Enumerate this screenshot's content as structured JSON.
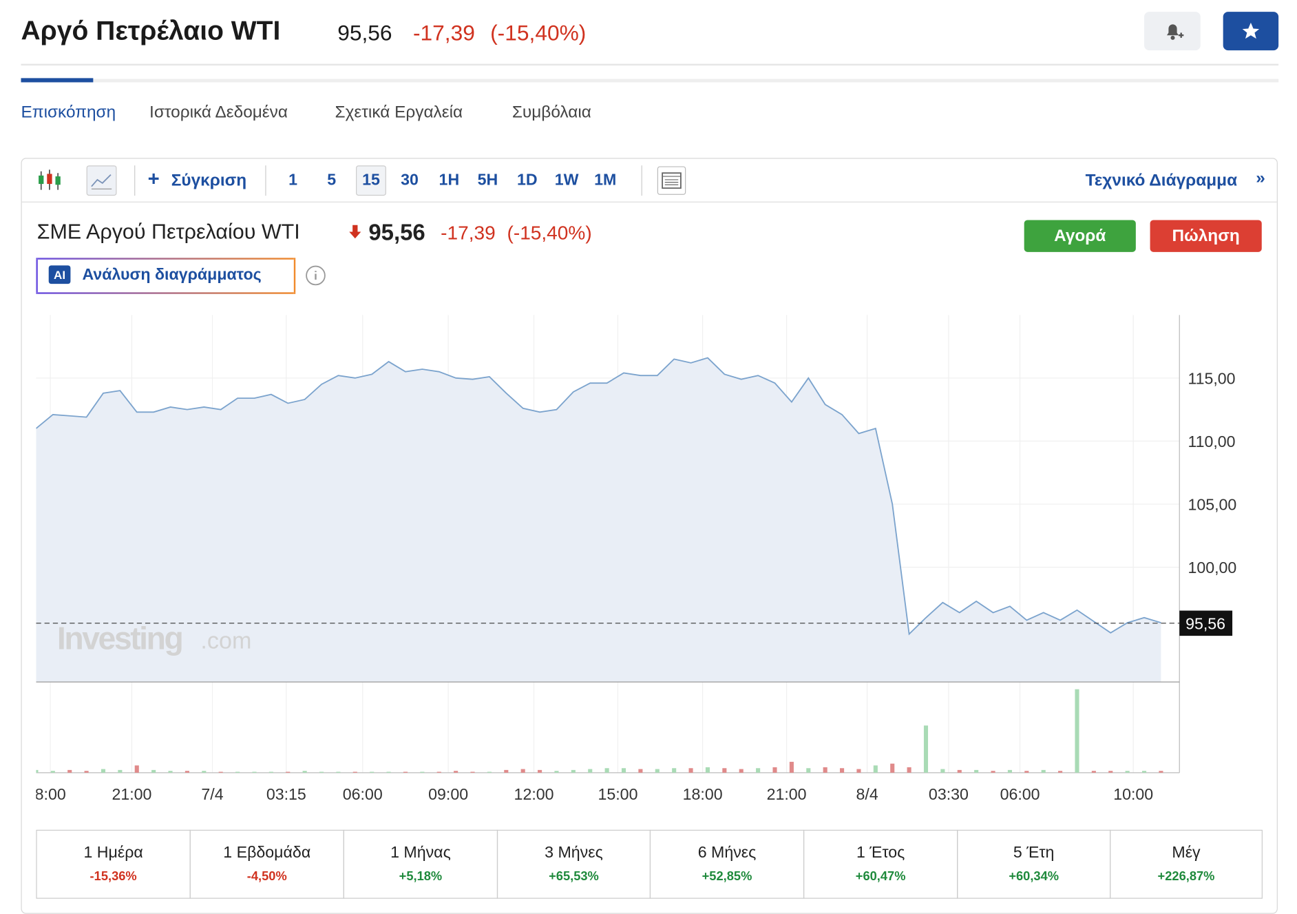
{
  "header": {
    "title": "Αργό Πετρέλαιο WTI",
    "price": "95,56",
    "change": "-17,39",
    "change_pct": "(-15,40%)"
  },
  "tabs": [
    "Επισκόπηση",
    "Ιστορικά Δεδομένα",
    "Σχετικά Εργαλεία",
    "Συμβόλαια"
  ],
  "toolbar": {
    "compare": "Σύγκριση",
    "intervals": [
      "1",
      "5",
      "15",
      "30",
      "1H",
      "5H",
      "1D",
      "1W",
      "1M"
    ],
    "technical": "Τεχνικό Διάγραμμα"
  },
  "instrument": {
    "name": "ΣΜΕ Αργού Πετρελαίου WTI",
    "price": "95,56",
    "change": "-17,39",
    "change_pct": "(-15,40%)",
    "buy": "Αγορά",
    "sell": "Πώληση",
    "ai_badge": "AI",
    "ai_button": "Ανάλυση διαγράμματος"
  },
  "chart_data": {
    "type": "line",
    "color": "#7ba3cd",
    "fill": "#e9eef6",
    "grid": true,
    "values": [
      111.0,
      112.1,
      112.0,
      111.9,
      113.8,
      114.0,
      112.3,
      112.3,
      112.7,
      112.5,
      112.7,
      112.5,
      113.4,
      113.4,
      113.7,
      113.0,
      113.3,
      114.5,
      115.2,
      115.0,
      115.3,
      116.3,
      115.5,
      115.7,
      115.5,
      115.0,
      114.9,
      115.1,
      113.8,
      112.6,
      112.3,
      112.5,
      113.9,
      114.6,
      114.6,
      115.4,
      115.2,
      115.2,
      116.5,
      116.2,
      116.6,
      115.3,
      114.9,
      115.2,
      114.6,
      113.1,
      115.0,
      112.9,
      112.1,
      110.6,
      111.0,
      105.0,
      94.7,
      96.0,
      97.2,
      96.4,
      97.3,
      96.4,
      96.9,
      95.8,
      96.4,
      95.8,
      96.6,
      95.7,
      94.8,
      95.6,
      96.0,
      95.6
    ],
    "volume": [
      3,
      2,
      3,
      2,
      4,
      3,
      8,
      3,
      2,
      2,
      2,
      1,
      1,
      1,
      1,
      1,
      2,
      1,
      1,
      1,
      1,
      1,
      1,
      1,
      1,
      2,
      1,
      1,
      3,
      4,
      3,
      2,
      3,
      4,
      5,
      5,
      4,
      4,
      5,
      5,
      6,
      5,
      4,
      5,
      6,
      12,
      5,
      6,
      5,
      4,
      8,
      10,
      6,
      52,
      4,
      3,
      3,
      2,
      3,
      2,
      3,
      2,
      92,
      2,
      2,
      2,
      2,
      2
    ],
    "volume_up_color": "#a9dbb5",
    "volume_down_color": "#e08a8a",
    "volume_ylim": [
      0,
      100
    ],
    "xlim": [
      0,
      67
    ],
    "xticks": [
      {
        "value": 0.85,
        "label": "8:00"
      },
      {
        "value": 5.7,
        "label": "21:00"
      },
      {
        "value": 10.5,
        "label": "7/4"
      },
      {
        "value": 14.9,
        "label": "03:15"
      },
      {
        "value": 19.45,
        "label": "06:00"
      },
      {
        "value": 24.55,
        "label": "09:00"
      },
      {
        "value": 29.65,
        "label": "12:00"
      },
      {
        "value": 34.65,
        "label": "15:00"
      },
      {
        "value": 39.7,
        "label": "18:00"
      },
      {
        "value": 44.7,
        "label": "21:00"
      },
      {
        "value": 49.5,
        "label": "8/4"
      },
      {
        "value": 54.35,
        "label": "03:30"
      },
      {
        "value": 58.6,
        "label": "06:00"
      },
      {
        "value": 65.35,
        "label": "10:00"
      }
    ],
    "ylim": [
      90.9,
      120
    ],
    "yticks": [
      {
        "value": 100,
        "label": "100,00"
      },
      {
        "value": 105,
        "label": "105,00"
      },
      {
        "value": 110,
        "label": "110,00"
      },
      {
        "value": 115,
        "label": "115,00"
      }
    ],
    "last_value": 95.56,
    "last_value_label": "95,56",
    "watermark": "Investing",
    "watermark_suffix": ".com"
  },
  "periods": [
    {
      "label": "1 Ημέρα",
      "value": "-15,36%"
    },
    {
      "label": "1 Εβδομάδα",
      "value": "-4,50%"
    },
    {
      "label": "1 Μήνας",
      "value": "+5,18%"
    },
    {
      "label": "3 Μήνες",
      "value": "+65,53%"
    },
    {
      "label": "6 Μήνες",
      "value": "+52,85%"
    },
    {
      "label": "1 Έτος",
      "value": "+60,47%"
    },
    {
      "label": "5 Έτη",
      "value": "+60,34%"
    },
    {
      "label": "Μέγ",
      "value": "+226,87%"
    }
  ]
}
